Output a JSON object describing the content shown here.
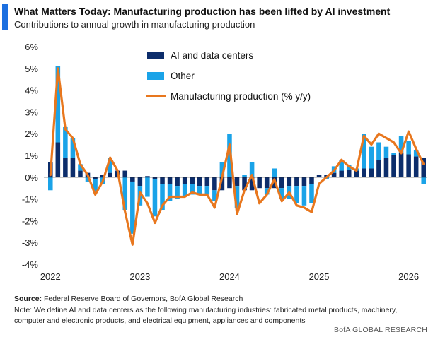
{
  "header": {
    "title": "What Matters Today: Manufacturing production has been lifted by AI investment",
    "subtitle": "Contributions to annual growth in manufacturing production"
  },
  "footer": {
    "source_label": "Source:",
    "source_text": "Federal Reserve Board of Governors, BofA Global Research",
    "note": "Note: We define AI and data centers as the following manufacturing industries: fabricated metal products, machinery, computer and electronic products, and electrical equipment, appliances and components",
    "brand": "BofA GLOBAL RESEARCH"
  },
  "colors": {
    "accent": "#1b6fe0",
    "ai": "#0c2d6b",
    "other": "#1aa3e8",
    "line": "#e8771e"
  },
  "chart_data": {
    "type": "bar",
    "stacked": true,
    "x_ticks": [
      "2022",
      "2023",
      "2024",
      "2025",
      "2026"
    ],
    "y_ticks": [
      "6%",
      "5%",
      "4%",
      "3%",
      "2%",
      "1%",
      "0%",
      "-1%",
      "-2%",
      "-3%",
      "-4%"
    ],
    "ylim": [
      -4,
      6
    ],
    "legend_position": "top-center",
    "grid": false,
    "series": [
      {
        "name": "AI and data centers",
        "type": "bar",
        "values": [
          0.7,
          1.6,
          0.9,
          0.9,
          0.3,
          0.2,
          -0.1,
          0.1,
          0.2,
          0.3,
          0.3,
          -0.2,
          -0.4,
          0.05,
          -0.1,
          -0.3,
          -0.3,
          -0.4,
          -0.3,
          -0.3,
          -0.4,
          -0.4,
          -0.6,
          -0.6,
          -0.5,
          -0.4,
          -0.6,
          -0.6,
          -0.5,
          -0.5,
          -0.5,
          -0.5,
          -0.4,
          -0.4,
          -0.4,
          -0.3,
          0.1,
          0.1,
          0.2,
          0.3,
          0.35,
          0.3,
          0.4,
          0.4,
          0.8,
          0.9,
          1.0,
          1.1,
          1.05,
          0.95,
          0.9
        ]
      },
      {
        "name": "Other",
        "type": "bar",
        "values": [
          -0.6,
          3.5,
          1.4,
          0.9,
          0.3,
          -0.2,
          -0.6,
          -0.3,
          0.7,
          0.0,
          -1.5,
          -2.4,
          -0.9,
          -0.9,
          -1.7,
          -1.2,
          -0.8,
          -0.6,
          -0.6,
          -0.5,
          -0.4,
          -0.4,
          -0.5,
          0.7,
          2.0,
          -1.0,
          0.1,
          0.7,
          0.0,
          -0.3,
          0.4,
          -0.5,
          -0.6,
          -0.8,
          -0.9,
          -0.9,
          0.0,
          -0.1,
          0.3,
          0.5,
          0.2,
          0.1,
          1.6,
          1.0,
          0.8,
          0.5,
          0.1,
          0.8,
          0.6,
          0.3,
          -0.3
        ]
      },
      {
        "name": "Manufacturing production (% y/y)",
        "type": "line",
        "values": [
          0.1,
          5.0,
          2.2,
          1.8,
          0.6,
          0.1,
          -0.8,
          -0.2,
          0.9,
          0.3,
          -1.6,
          -3.1,
          -0.7,
          -1.2,
          -2.1,
          -1.3,
          -0.9,
          -0.9,
          -0.9,
          -0.7,
          -0.8,
          -0.8,
          -1.4,
          0.0,
          1.5,
          -1.7,
          -0.6,
          0.1,
          -1.2,
          -0.8,
          -0.1,
          -1.1,
          -0.7,
          -1.3,
          -1.4,
          -1.6,
          -0.3,
          0.0,
          0.3,
          0.8,
          0.5,
          0.3,
          1.9,
          1.5,
          2.0,
          1.8,
          1.6,
          1.1,
          2.1,
          1.3,
          0.6
        ]
      }
    ]
  }
}
